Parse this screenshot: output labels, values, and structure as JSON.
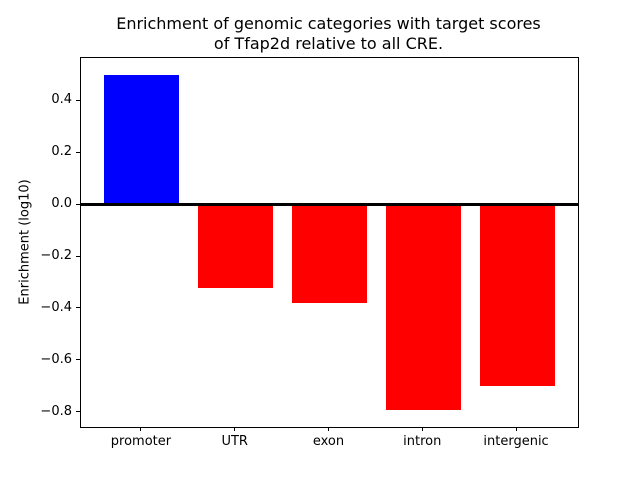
{
  "title": {
    "line1": "Enrichment of genomic categories with target scores",
    "line2": "of Tfap2d relative to all CRE."
  },
  "chart_data": {
    "type": "bar",
    "title": "Enrichment of genomic categories with target scores\nof Tfap2d relative to all CRE.",
    "categories": [
      "promoter",
      "UTR",
      "exon",
      "intron",
      "intergenic"
    ],
    "values": [
      0.5,
      -0.32,
      -0.38,
      -0.79,
      -0.7
    ],
    "bar_colors": [
      "#0000ff",
      "#ff0000",
      "#ff0000",
      "#ff0000",
      "#ff0000"
    ],
    "xlabel": "",
    "ylabel": "Enrichment (log10)",
    "yticks": [
      0.4,
      0.2,
      0.0,
      -0.2,
      -0.4,
      -0.6,
      -0.8
    ],
    "ytick_labels": [
      "0.4",
      "0.2",
      "0.0",
      "−0.2",
      "−0.4",
      "−0.6",
      "−0.8"
    ],
    "ylim": [
      -0.855,
      0.565
    ],
    "xlim": [
      -0.65,
      4.65
    ],
    "bar_width": 0.8,
    "grid": false,
    "legend": null,
    "zero_line": true,
    "colors": {
      "positive": "#0000ff",
      "negative": "#ff0000",
      "axis": "#000000",
      "background": "#ffffff"
    }
  }
}
